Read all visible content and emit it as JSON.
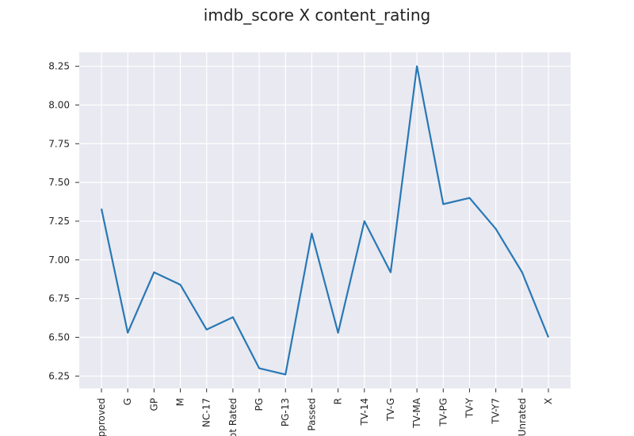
{
  "chart_data": {
    "type": "line",
    "title": "imdb_score X content_rating",
    "xlabel": "",
    "ylabel": "",
    "categories": [
      "Approved",
      "G",
      "GP",
      "M",
      "NC-17",
      "Not Rated",
      "PG",
      "PG-13",
      "Passed",
      "R",
      "TV-14",
      "TV-G",
      "TV-MA",
      "TV-PG",
      "TV-Y",
      "TV-Y7",
      "Unrated",
      "X"
    ],
    "values": [
      7.33,
      6.53,
      6.92,
      6.84,
      6.55,
      6.63,
      6.3,
      6.26,
      7.17,
      6.53,
      7.25,
      6.92,
      8.25,
      7.36,
      7.4,
      7.2,
      6.92,
      6.5
    ],
    "ylim": [
      6.17,
      8.34
    ],
    "yticks": [
      "6.25",
      "6.50",
      "6.75",
      "7.00",
      "7.25",
      "7.50",
      "7.75",
      "8.00",
      "8.25"
    ],
    "grid": true,
    "colors": {
      "line": "#2878b5",
      "background": "#e9e9f1",
      "grid": "#ffffff"
    }
  }
}
